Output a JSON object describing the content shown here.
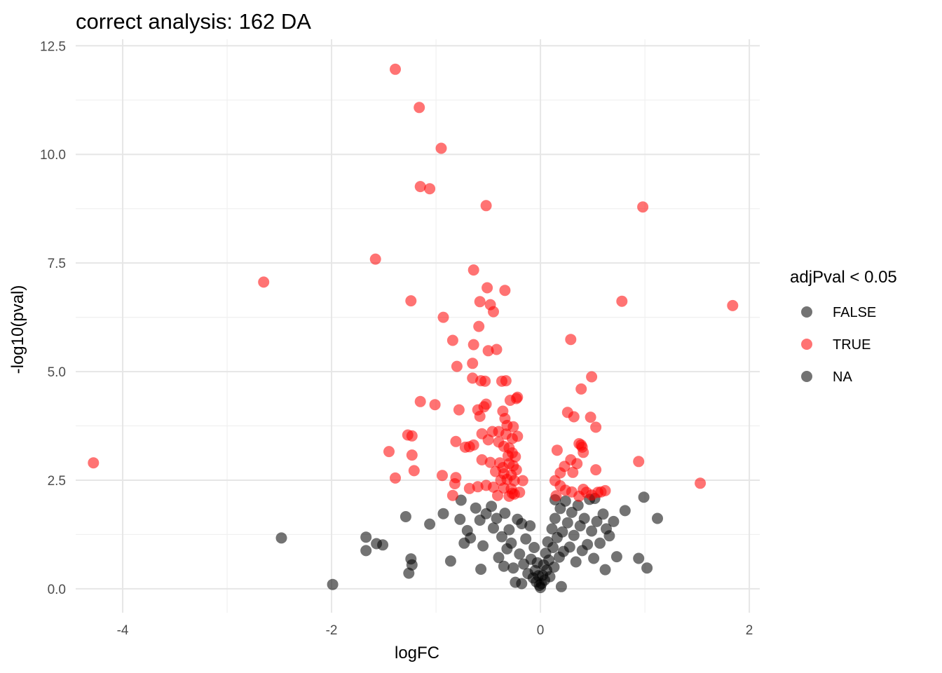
{
  "chart_data": {
    "type": "scatter",
    "title": "correct analysis: 162 DA",
    "xlabel": "logFC",
    "ylabel": "-log10(pval)",
    "xlim": [
      -4.45,
      2.1
    ],
    "ylim": [
      -0.55,
      12.65
    ],
    "xticks": [
      -4,
      -2,
      0,
      2
    ],
    "yticks": [
      0.0,
      2.5,
      5.0,
      7.5,
      10.0,
      12.5
    ],
    "xtick_labels": [
      "-4",
      "-2",
      "0",
      "2"
    ],
    "ytick_labels": [
      "0.0",
      "2.5",
      "5.0",
      "7.5",
      "10.0",
      "12.5"
    ],
    "grid": true,
    "legend": {
      "title": "adjPval < 0.05",
      "position": "right",
      "entries": [
        {
          "label": "FALSE",
          "color": "#000000"
        },
        {
          "label": "TRUE",
          "color": "#ff0000"
        },
        {
          "label": "NA",
          "color": "#000000"
        }
      ]
    },
    "series": [
      {
        "name": "TRUE",
        "color": "#ff0000",
        "points": [
          [
            -1.39,
            11.96
          ],
          [
            -1.16,
            11.08
          ],
          [
            -0.95,
            10.14
          ],
          [
            -1.15,
            9.26
          ],
          [
            -1.06,
            9.21
          ],
          [
            -0.52,
            8.82
          ],
          [
            0.98,
            8.79
          ],
          [
            -1.58,
            7.59
          ],
          [
            -2.65,
            7.06
          ],
          [
            -0.64,
            7.34
          ],
          [
            -0.51,
            6.93
          ],
          [
            -0.34,
            6.87
          ],
          [
            -1.24,
            6.63
          ],
          [
            -0.58,
            6.61
          ],
          [
            0.78,
            6.62
          ],
          [
            1.84,
            6.52
          ],
          [
            -0.48,
            6.54
          ],
          [
            -0.45,
            6.38
          ],
          [
            -0.93,
            6.25
          ],
          [
            -0.59,
            6.04
          ],
          [
            -0.84,
            5.72
          ],
          [
            0.29,
            5.74
          ],
          [
            -0.64,
            5.62
          ],
          [
            -0.42,
            5.51
          ],
          [
            -0.5,
            5.48
          ],
          [
            -0.65,
            5.19
          ],
          [
            -0.8,
            5.12
          ],
          [
            -0.65,
            4.85
          ],
          [
            -0.57,
            4.79
          ],
          [
            -0.53,
            4.78
          ],
          [
            -0.37,
            4.78
          ],
          [
            -0.33,
            4.79
          ],
          [
            0.49,
            4.88
          ],
          [
            0.39,
            4.6
          ],
          [
            -0.22,
            4.41
          ],
          [
            -0.23,
            4.38
          ],
          [
            -0.29,
            4.34
          ],
          [
            -1.15,
            4.31
          ],
          [
            -1.01,
            4.24
          ],
          [
            -0.52,
            4.25
          ],
          [
            -0.54,
            4.19
          ],
          [
            -0.6,
            4.12
          ],
          [
            -0.78,
            4.12
          ],
          [
            -0.36,
            4.09
          ],
          [
            0.26,
            4.06
          ],
          [
            -0.34,
            3.92
          ],
          [
            -0.58,
            3.97
          ],
          [
            0.32,
            3.96
          ],
          [
            0.48,
            3.95
          ],
          [
            -0.32,
            3.76
          ],
          [
            -0.26,
            3.73
          ],
          [
            -0.4,
            3.62
          ],
          [
            -0.46,
            3.62
          ],
          [
            0.53,
            3.72
          ],
          [
            -1.27,
            3.54
          ],
          [
            -1.23,
            3.52
          ],
          [
            -0.33,
            3.56
          ],
          [
            -0.56,
            3.57
          ],
          [
            -0.22,
            3.51
          ],
          [
            -0.5,
            3.43
          ],
          [
            -0.27,
            3.46
          ],
          [
            -0.4,
            3.38
          ],
          [
            -0.81,
            3.39
          ],
          [
            0.37,
            3.34
          ],
          [
            0.39,
            3.31
          ],
          [
            0.4,
            3.26
          ],
          [
            -0.64,
            3.31
          ],
          [
            -0.68,
            3.27
          ],
          [
            -0.72,
            3.26
          ],
          [
            -0.35,
            3.28
          ],
          [
            -0.3,
            3.24
          ],
          [
            0.16,
            3.19
          ],
          [
            0.41,
            3.14
          ],
          [
            -1.45,
            3.16
          ],
          [
            -1.23,
            3.08
          ],
          [
            -0.27,
            3.13
          ],
          [
            -0.31,
            3.06
          ],
          [
            -0.24,
            3.04
          ],
          [
            -0.56,
            2.97
          ],
          [
            -0.48,
            2.91
          ],
          [
            -0.39,
            2.9
          ],
          [
            -0.3,
            2.88
          ],
          [
            0.29,
            2.97
          ],
          [
            0.35,
            2.88
          ],
          [
            0.94,
            2.93
          ],
          [
            -4.28,
            2.9
          ],
          [
            -0.26,
            2.83
          ],
          [
            -0.36,
            2.79
          ],
          [
            -0.23,
            2.74
          ],
          [
            0.23,
            2.82
          ],
          [
            0.53,
            2.74
          ],
          [
            -1.21,
            2.72
          ],
          [
            0.19,
            2.67
          ],
          [
            0.31,
            2.68
          ],
          [
            -0.43,
            2.7
          ],
          [
            -0.35,
            2.65
          ],
          [
            -0.28,
            2.62
          ],
          [
            -0.94,
            2.61
          ],
          [
            -0.81,
            2.56
          ],
          [
            -1.39,
            2.55
          ],
          [
            -0.38,
            2.5
          ],
          [
            -0.32,
            2.52
          ],
          [
            -0.25,
            2.49
          ],
          [
            -0.17,
            2.49
          ],
          [
            0.14,
            2.49
          ],
          [
            -0.82,
            2.42
          ],
          [
            0.19,
            2.37
          ],
          [
            1.53,
            2.43
          ],
          [
            -0.52,
            2.38
          ],
          [
            -0.6,
            2.35
          ],
          [
            -0.45,
            2.34
          ],
          [
            -0.35,
            2.32
          ],
          [
            -0.28,
            2.3
          ],
          [
            -0.68,
            2.31
          ],
          [
            0.24,
            2.27
          ],
          [
            0.41,
            2.29
          ],
          [
            0.62,
            2.26
          ],
          [
            -0.2,
            2.22
          ],
          [
            -0.27,
            2.2
          ],
          [
            0.3,
            2.23
          ],
          [
            0.44,
            2.22
          ],
          [
            0.55,
            2.22
          ],
          [
            0.58,
            2.23
          ],
          [
            -0.84,
            2.15
          ],
          [
            -0.41,
            2.15
          ],
          [
            -0.25,
            2.18
          ],
          [
            0.15,
            2.14
          ],
          [
            0.37,
            2.13
          ],
          [
            -0.3,
            2.13
          ],
          [
            0.49,
            2.16
          ]
        ]
      },
      {
        "name": "FALSE",
        "color": "#000000",
        "points": [
          [
            -2.48,
            1.17
          ],
          [
            -1.99,
            0.1
          ],
          [
            -1.67,
            1.19
          ],
          [
            -1.67,
            0.88
          ],
          [
            -1.57,
            1.04
          ],
          [
            -1.51,
            1.01
          ],
          [
            -1.29,
            1.66
          ],
          [
            -1.24,
            0.69
          ],
          [
            -1.23,
            0.55
          ],
          [
            -1.26,
            0.36
          ],
          [
            -1.06,
            1.49
          ],
          [
            -0.93,
            1.73
          ],
          [
            -0.86,
            0.64
          ],
          [
            -0.76,
            2.04
          ],
          [
            -0.77,
            1.6
          ],
          [
            -0.73,
            1.05
          ],
          [
            -0.7,
            1.34
          ],
          [
            -0.67,
            1.17
          ],
          [
            -0.62,
            1.86
          ],
          [
            -0.58,
            1.58
          ],
          [
            -0.55,
            0.99
          ],
          [
            -0.52,
            1.73
          ],
          [
            -0.47,
            1.9
          ],
          [
            -0.45,
            1.4
          ],
          [
            -0.42,
            1.62
          ],
          [
            -0.4,
            0.72
          ],
          [
            -0.37,
            1.2
          ],
          [
            -0.34,
            1.74
          ],
          [
            -0.32,
            0.92
          ],
          [
            -0.3,
            1.36
          ],
          [
            -0.28,
            1.05
          ],
          [
            -0.26,
            0.48
          ],
          [
            -0.24,
            0.15
          ],
          [
            -0.22,
            1.6
          ],
          [
            -0.2,
            0.8
          ],
          [
            -0.18,
            1.5
          ],
          [
            -0.16,
            0.57
          ],
          [
            -0.14,
            1.15
          ],
          [
            -0.12,
            0.35
          ],
          [
            -0.1,
            1.45
          ],
          [
            -0.09,
            0.68
          ],
          [
            -0.07,
            0.25
          ],
          [
            -0.06,
            0.95
          ],
          [
            -0.05,
            0.42
          ],
          [
            -0.04,
            0.16
          ],
          [
            -0.03,
            0.6
          ],
          [
            -0.02,
            0.3
          ],
          [
            -0.01,
            0.08
          ],
          [
            0.0,
            0.03
          ],
          [
            0.01,
            0.12
          ],
          [
            0.02,
            0.31
          ],
          [
            0.03,
            0.55
          ],
          [
            0.04,
            0.2
          ],
          [
            0.05,
            0.82
          ],
          [
            0.06,
            0.43
          ],
          [
            0.07,
            1.08
          ],
          [
            0.08,
            0.66
          ],
          [
            0.09,
            0.28
          ],
          [
            0.11,
            1.38
          ],
          [
            0.12,
            0.95
          ],
          [
            0.13,
            0.5
          ],
          [
            0.14,
            1.62
          ],
          [
            0.16,
            1.18
          ],
          [
            0.18,
            0.73
          ],
          [
            0.19,
            1.85
          ],
          [
            0.21,
            1.31
          ],
          [
            0.22,
            0.86
          ],
          [
            0.24,
            2.02
          ],
          [
            0.26,
            1.52
          ],
          [
            0.28,
            0.96
          ],
          [
            0.3,
            1.76
          ],
          [
            0.32,
            1.23
          ],
          [
            0.34,
            0.62
          ],
          [
            0.36,
            1.92
          ],
          [
            0.38,
            1.45
          ],
          [
            0.4,
            0.88
          ],
          [
            0.42,
            1.62
          ],
          [
            0.45,
            1.02
          ],
          [
            0.47,
            2.06
          ],
          [
            0.49,
            1.33
          ],
          [
            0.51,
            0.7
          ],
          [
            0.54,
            1.55
          ],
          [
            0.57,
            1.05
          ],
          [
            0.6,
            1.72
          ],
          [
            0.62,
            0.44
          ],
          [
            0.63,
            1.38
          ],
          [
            0.66,
            1.22
          ],
          [
            0.7,
            1.55
          ],
          [
            0.73,
            0.74
          ],
          [
            0.81,
            1.8
          ],
          [
            0.94,
            0.7
          ],
          [
            0.99,
            2.11
          ],
          [
            1.02,
            0.48
          ],
          [
            1.12,
            1.62
          ],
          [
            0.52,
            2.08
          ],
          [
            0.14,
            2.05
          ],
          [
            -0.35,
            0.52
          ],
          [
            -0.57,
            0.45
          ],
          [
            -0.18,
            0.12
          ],
          [
            0.2,
            0.05
          ]
        ]
      }
    ]
  }
}
